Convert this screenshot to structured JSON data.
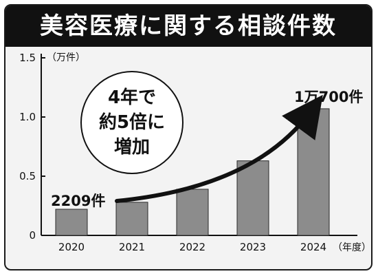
{
  "title": "美容医療に関する相談件数",
  "chart_data": {
    "type": "bar",
    "categories": [
      "2020",
      "2021",
      "2022",
      "2023",
      "2024"
    ],
    "values": [
      0.2209,
      0.28,
      0.39,
      0.63,
      1.07
    ],
    "ylim": [
      0,
      1.5
    ],
    "yticks": [
      "0",
      "0.5",
      "1.0",
      "1.5"
    ],
    "y_unit": "（万件）",
    "x_unit": "（年度）",
    "first_label": "2209件",
    "last_label": "1万700件",
    "callout_lines": [
      "4年で",
      "約5倍に",
      "増加"
    ],
    "colors": {
      "bar": "#8c8c8c",
      "bar_edge": "#2a2a2a",
      "title_bg": "#111111",
      "panel": "#f3f3f3"
    },
    "grid": false,
    "legend": "none"
  }
}
